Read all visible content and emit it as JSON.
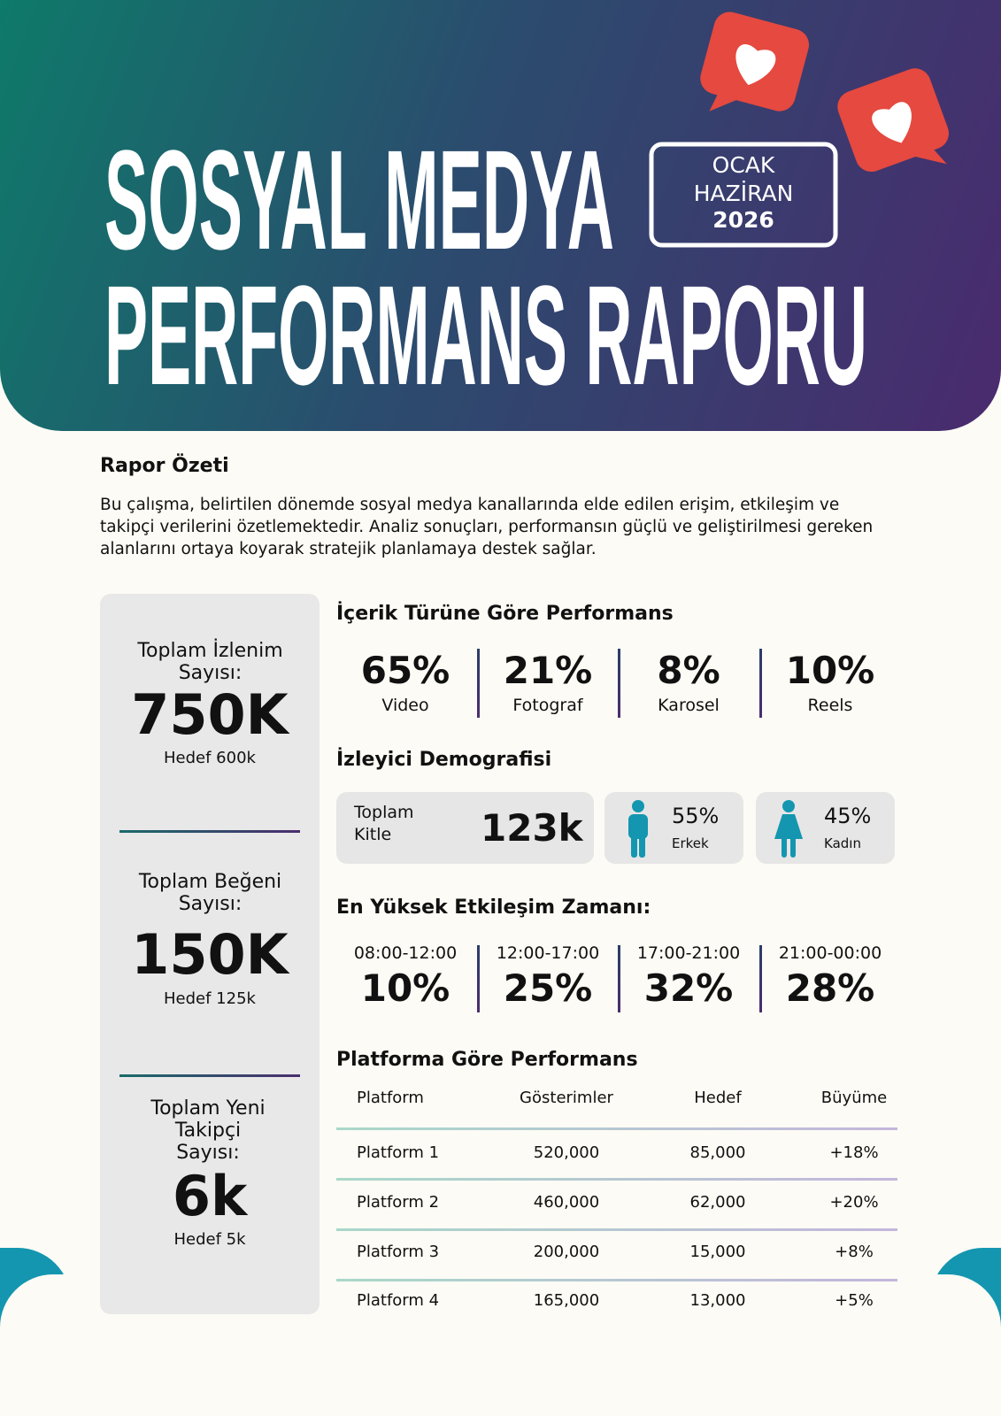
{
  "header": {
    "title_line1": "SOSYAL MEDYA",
    "title_line2": "PERFORMANS RAPORU",
    "period": {
      "line1": "OCAK",
      "line2": "HAZİRAN",
      "year": "2026"
    }
  },
  "summary": {
    "heading": "Rapor Özeti",
    "text": "Bu çalışma, belirtilen dönemde sosyal medya kanallarında elde edilen erişim, etkileşim ve takipçi verilerini özetlemektedir. Analiz sonuçları, performansın güçlü ve geliştirilmesi gereken alanlarını ortaya koyarak stratejik planlamaya destek sağlar."
  },
  "kpis": [
    {
      "label": "Toplam İzlenim Sayısı:",
      "value": "750K",
      "target": "Hedef 600k"
    },
    {
      "label": "Toplam Beğeni Sayısı:",
      "value": "150K",
      "target": "Hedef 125k"
    },
    {
      "label": "Toplam Yeni Takipçi Sayısı:",
      "value": "6k",
      "target": "Hedef 5k"
    }
  ],
  "content_types": {
    "heading": "İçerik Türüne Göre Performans",
    "items": [
      {
        "value": "65%",
        "label": "Video"
      },
      {
        "value": "21%",
        "label": "Fotograf"
      },
      {
        "value": "8%",
        "label": "Karosel"
      },
      {
        "value": "10%",
        "label": "Reels"
      }
    ]
  },
  "demographics": {
    "heading": "İzleyici Demografisi",
    "total_label": "Toplam Kitle",
    "total_value": "123k",
    "male": {
      "value": "55%",
      "label": "Erkek"
    },
    "female": {
      "value": "45%",
      "label": "Kadın"
    }
  },
  "engagement": {
    "heading": "En Yüksek Etkileşim Zamanı:",
    "items": [
      {
        "time": "08:00-12:00",
        "value": "10%"
      },
      {
        "time": "12:00-17:00",
        "value": "25%"
      },
      {
        "time": "17:00-21:00",
        "value": "32%"
      },
      {
        "time": "21:00-00:00",
        "value": "28%"
      }
    ]
  },
  "platforms": {
    "heading": "Platforma Göre Performans",
    "columns": [
      "Platform",
      "Gösterimler",
      "Hedef",
      "Büyüme"
    ],
    "rows": [
      [
        "Platform 1",
        "520,000",
        "85,000",
        "+18%"
      ],
      [
        "Platform 2",
        "460,000",
        "62,000",
        "+20%"
      ],
      [
        "Platform 3",
        "200,000",
        "15,000",
        "+8%"
      ],
      [
        "Platform 4",
        "165,000",
        "13,000",
        "+5%"
      ]
    ]
  }
}
